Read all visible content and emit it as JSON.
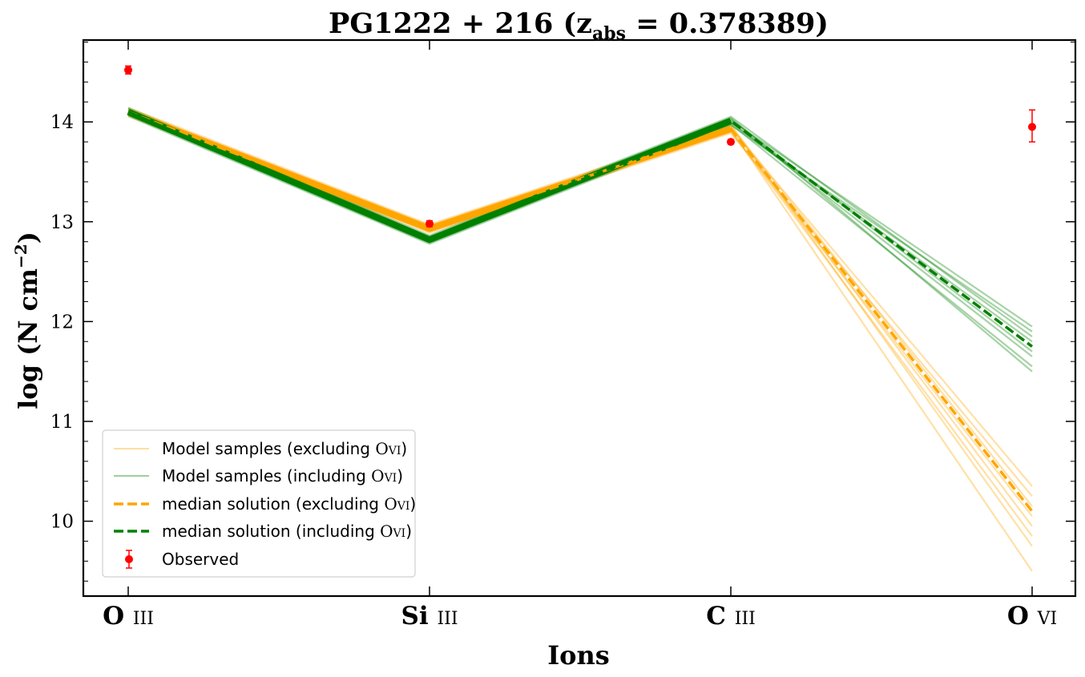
{
  "chart_data": {
    "type": "line",
    "title": "PG1222 + 216 (z",
    "title_sub": "abs",
    "title_tail": " = 0.378389)",
    "xlabel": "Ions",
    "ylabel": "log (N cm",
    "ylabel_sup": "−2",
    "ylabel_tail": ")",
    "categories": [
      {
        "main": "O",
        "sub": "iii"
      },
      {
        "main": "Si",
        "sub": "iii"
      },
      {
        "main": "C",
        "sub": "iii"
      },
      {
        "main": "O",
        "sub": "vi"
      }
    ],
    "ylim": [
      9.25,
      14.82
    ],
    "yticks": [
      "10",
      "11",
      "12",
      "13",
      "14"
    ],
    "grid": false,
    "legend_position": "lower-left",
    "colors": {
      "excluding": "#ffa500",
      "including": "#008000",
      "observed": "#ff0000"
    },
    "observed": {
      "name": "Observed",
      "values": [
        14.52,
        12.98,
        13.8,
        13.95
      ],
      "err_low": [
        0.04,
        0.03,
        0.02,
        0.15
      ],
      "err_high": [
        0.04,
        0.03,
        0.02,
        0.17
      ]
    },
    "series": [
      {
        "name": "median solution (excluding O vi)",
        "key": "excluding",
        "values": [
          14.1,
          12.93,
          13.93,
          10.1
        ]
      },
      {
        "name": "median solution (including O vi)",
        "key": "including",
        "values": [
          14.1,
          12.82,
          14.01,
          11.75
        ]
      }
    ],
    "samples_excluding_ovi": [
      10.25,
      10.05,
      9.85,
      9.5,
      10.35,
      9.95,
      10.15,
      9.75
    ],
    "samples_including_ovi": [
      11.9,
      11.55,
      11.8,
      11.65,
      11.95,
      11.7,
      11.5,
      11.85
    ],
    "legend": {
      "model_excl": {
        "text": "Model samples (excluding ",
        "ion": "O",
        "sub": "vi",
        "close": ")"
      },
      "model_incl": {
        "text": "Model samples (including ",
        "ion": "O",
        "sub": "vi",
        "close": ")"
      },
      "median_excl": {
        "text": "median solution (excluding ",
        "ion": "O",
        "sub": "vi",
        "close": ")"
      },
      "median_incl": {
        "text": "median solution (including ",
        "ion": "O",
        "sub": "vi",
        "close": ")"
      },
      "observed": {
        "text": "Observed"
      }
    }
  }
}
